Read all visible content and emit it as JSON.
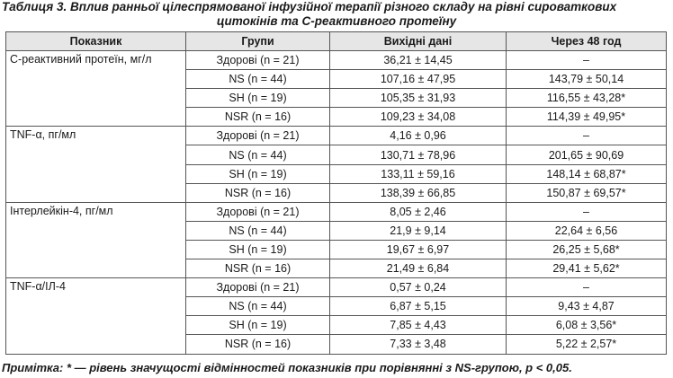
{
  "caption": {
    "line1": "Таблиця 3. Вплив ранньої цілеспрямованої інфузійної терапії різного складу на рівні сироваткових",
    "line2": "цитокінів та С-реактивного протеїну"
  },
  "table": {
    "headers": [
      "Показник",
      "Групи",
      "Вихідні дані",
      "Через 48 год"
    ],
    "indicators": [
      {
        "name": "С-реактивний протеїн, мг/л",
        "rows": [
          {
            "group": "Здорові (n = 21)",
            "baseline": "36,21 ± 14,45",
            "after": "–"
          },
          {
            "group": "NS (n = 44)",
            "baseline": "107,16 ± 47,95",
            "after": "143,79 ± 50,14"
          },
          {
            "group": "SH (n = 19)",
            "baseline": "105,35 ± 31,93",
            "after": "116,55 ± 43,28*"
          },
          {
            "group": "NSR (n = 16)",
            "baseline": "109,23 ± 34,08",
            "after": "114,39 ± 49,95*"
          }
        ]
      },
      {
        "name": "TNF-α, пг/мл",
        "rows": [
          {
            "group": "Здорові (n = 21)",
            "baseline": "4,16 ± 0,96",
            "after": "–"
          },
          {
            "group": "NS (n = 44)",
            "baseline": "130,71 ± 78,96",
            "after": "201,65 ± 90,69"
          },
          {
            "group": "SH (n = 19)",
            "baseline": "133,11 ± 59,16",
            "after": "148,14 ± 68,87*"
          },
          {
            "group": "NSR (n = 16)",
            "baseline": "138,39 ± 66,85",
            "after": "150,87 ± 69,57*"
          }
        ]
      },
      {
        "name": "Інтерлейкін-4, пг/мл",
        "rows": [
          {
            "group": "Здорові (n = 21)",
            "baseline": "8,05 ± 2,46",
            "after": "–"
          },
          {
            "group": "NS (n = 44)",
            "baseline": "21,9 ± 9,14",
            "after": "22,64 ± 6,56"
          },
          {
            "group": "SH (n = 19)",
            "baseline": "19,67 ± 6,97",
            "after": "26,25 ± 5,68*"
          },
          {
            "group": "NSR (n = 16)",
            "baseline": "21,49 ± 6,84",
            "after": "29,41 ± 5,62*"
          }
        ]
      },
      {
        "name": "TNF-α/ІЛ-4",
        "rows": [
          {
            "group": "Здорові (n = 21)",
            "baseline": "0,57 ± 0,24",
            "after": "–"
          },
          {
            "group": "NS (n = 44)",
            "baseline": "6,87 ± 5,15",
            "after": "9,43 ± 4,87"
          },
          {
            "group": "SH (n = 19)",
            "baseline": "7,85 ± 4,43",
            "after": "6,08 ± 3,56*"
          },
          {
            "group": "NSR (n = 16)",
            "baseline": "7,33 ± 3,48",
            "after": "5,22 ± 2,57*"
          }
        ]
      }
    ]
  },
  "note": "Примітка: * — рівень значущості відмінностей показників при порівнянні з NS-групою, p < 0,05."
}
